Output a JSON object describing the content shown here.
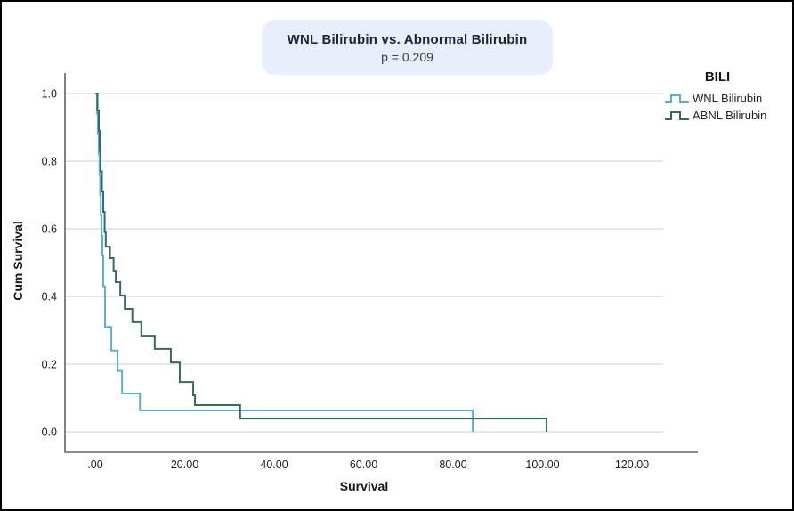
{
  "title_box_bg": "#E9EEFB",
  "legend": {
    "title": "BILI"
  },
  "chart_data": {
    "type": "line",
    "subtype": "kaplan-meier-step",
    "title": "WNL Bilirubin vs. Abnormal Bilirubin",
    "subtitle": "p = 0.209",
    "xlabel": "Survival",
    "ylabel": "Cum Survival",
    "xlim": [
      -7,
      127
    ],
    "ylim": [
      -0.06,
      1.06
    ],
    "grid": "horizontal",
    "gridline_color": "#cfcfcf",
    "legend_position": "right",
    "x_ticks": {
      "values": [
        0,
        20,
        40,
        60,
        80,
        100,
        120
      ],
      "labels": [
        ".00",
        "20.00",
        "40.00",
        "60.00",
        "80.00",
        "100.00",
        "120.00"
      ]
    },
    "y_ticks": {
      "values": [
        0.0,
        0.2,
        0.4,
        0.6,
        0.8,
        1.0
      ],
      "labels": [
        "0.0",
        "0.2",
        "0.4",
        "0.6",
        "0.8",
        "1.0"
      ]
    },
    "series": [
      {
        "name": "WNL Bilirubin",
        "color": "#58AFD7",
        "points": [
          [
            0,
            1.0
          ],
          [
            0.4,
            0.94
          ],
          [
            0.6,
            0.88
          ],
          [
            0.8,
            0.82
          ],
          [
            0.95,
            0.76
          ],
          [
            1.1,
            0.7
          ],
          [
            1.25,
            0.64
          ],
          [
            1.4,
            0.58
          ],
          [
            1.6,
            0.52
          ],
          [
            1.8,
            0.43
          ],
          [
            2.2,
            0.31
          ],
          [
            3.6,
            0.24
          ],
          [
            5.0,
            0.18
          ],
          [
            6.0,
            0.113
          ],
          [
            10.0,
            0.063
          ],
          [
            84.4,
            0.0
          ]
        ]
      },
      {
        "name": "ABNL Bilirubin",
        "color": "#336C62",
        "points": [
          [
            0,
            1.0
          ],
          [
            0.5,
            0.95
          ],
          [
            0.8,
            0.89
          ],
          [
            1.0,
            0.83
          ],
          [
            1.2,
            0.77
          ],
          [
            1.5,
            0.71
          ],
          [
            1.8,
            0.65
          ],
          [
            2.1,
            0.59
          ],
          [
            2.35,
            0.547
          ],
          [
            3.3,
            0.513
          ],
          [
            4.1,
            0.476
          ],
          [
            4.6,
            0.442
          ],
          [
            5.6,
            0.403
          ],
          [
            6.6,
            0.363
          ],
          [
            8.3,
            0.324
          ],
          [
            10.3,
            0.284
          ],
          [
            13.3,
            0.245
          ],
          [
            16.9,
            0.205
          ],
          [
            18.9,
            0.147
          ],
          [
            21.9,
            0.108
          ],
          [
            22.3,
            0.079
          ],
          [
            32.4,
            0.039
          ],
          [
            100.9,
            0.0
          ]
        ]
      }
    ]
  }
}
